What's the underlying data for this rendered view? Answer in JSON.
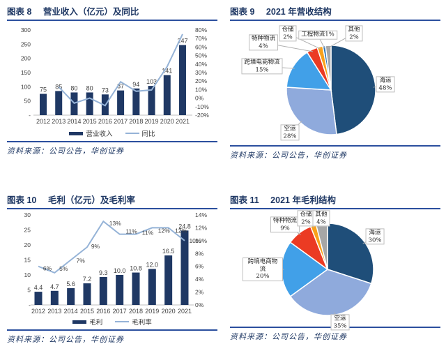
{
  "colors": {
    "navy": "#1F3864",
    "rule": "#2B4F9E",
    "bar": "#1F3864",
    "line": "#95B3D7",
    "axis_text": "#404040",
    "baseline": "#BFBFBF",
    "leader": "#B0B0B0"
  },
  "chart_data": [
    {
      "figure_label": "图表 8",
      "title": "营业收入（亿元）及同比",
      "type": "bar+line",
      "categories": [
        "2012",
        "2013",
        "2014",
        "2015",
        "2016",
        "2017",
        "2018",
        "2019",
        "2020",
        "2021"
      ],
      "series": [
        {
          "name": "营业收入",
          "type": "bar",
          "axis": "left",
          "values": [
            75,
            85,
            80,
            80,
            73,
            87,
            94,
            103,
            141,
            247
          ],
          "labels": [
            "75",
            "85",
            "80",
            "80",
            "73",
            "87",
            "94",
            "103",
            "141",
            "247"
          ],
          "color": "#1F3864"
        },
        {
          "name": "同比",
          "type": "line",
          "axis": "right",
          "values": [
            null,
            13.3,
            -5.9,
            0,
            -8.8,
            19.2,
            8,
            9.6,
            36.9,
            75.2
          ],
          "labels": null,
          "color": "#95B3D7"
        }
      ],
      "left_axis": {
        "min": 0,
        "max": 300,
        "step": 50,
        "zero_label": "-"
      },
      "right_axis": {
        "min": -20,
        "max": 80,
        "step": 10,
        "suffix": "%"
      },
      "legend_position": "bottom",
      "grid": false,
      "source": "资料来源：公司公告，华创证券"
    },
    {
      "figure_label": "图表 9",
      "title": "2021 年营收结构",
      "type": "pie",
      "slices": [
        {
          "name": "海运",
          "value": 48,
          "label": "48%",
          "color": "#1F4E79"
        },
        {
          "name": "空运",
          "value": 28,
          "label": "28%",
          "color": "#8FAADC"
        },
        {
          "name": "跨境电商物流",
          "value": 15,
          "label": "15%",
          "color": "#41A0E8"
        },
        {
          "name": "特种物流",
          "value": 4,
          "label": "4%",
          "color": "#EB3B23"
        },
        {
          "name": "仓储",
          "value": 2,
          "label": "2%",
          "color": "#F9A11B"
        },
        {
          "name": "工程物流",
          "value": 1,
          "label": "1%",
          "color": "#2E75B6"
        },
        {
          "name": "其他",
          "value": 2,
          "label": "2%",
          "color": "#A6A6A6"
        }
      ],
      "source": "资料来源：公司公告，华创证券"
    },
    {
      "figure_label": "图表 10",
      "title": "毛利（亿元）及毛利率",
      "type": "bar+line",
      "categories": [
        "2012",
        "2013",
        "2014",
        "2015",
        "2016",
        "2017",
        "2018",
        "2019",
        "2020",
        "2021"
      ],
      "series": [
        {
          "name": "毛利",
          "type": "bar",
          "axis": "left",
          "values": [
            4.4,
            4.7,
            5.6,
            7.2,
            9.3,
            10.0,
            10.8,
            12.0,
            16.5,
            24.8
          ],
          "labels": [
            "4.4",
            "4.7",
            "5.6",
            "7.2",
            "9.3",
            "10.0",
            "10.8",
            "12.0",
            "16.5",
            "24.8"
          ],
          "color": "#1F3864"
        },
        {
          "name": "毛利率",
          "type": "line",
          "axis": "right",
          "values": [
            6,
            5,
            7,
            9,
            13,
            11,
            11,
            12,
            12,
            10
          ],
          "labels": [
            "6%",
            "5%",
            "7%",
            "9%",
            "13%",
            "11%",
            "11%",
            "12%",
            "12%",
            "10%"
          ],
          "color": "#95B3D7"
        }
      ],
      "left_axis": {
        "min": 0,
        "max": 30,
        "step": 5,
        "zero_label": "-"
      },
      "right_axis": {
        "min": 0,
        "max": 14,
        "step": 2,
        "suffix": "%"
      },
      "legend_position": "bottom",
      "grid": false,
      "source": "资料来源：公司公告，华创证券"
    },
    {
      "figure_label": "图表 11",
      "title": "2021 年毛利结构",
      "type": "pie",
      "slices": [
        {
          "name": "海运",
          "value": 30,
          "label": "30%",
          "color": "#1F4E79"
        },
        {
          "name": "空运",
          "value": 35,
          "label": "35%",
          "color": "#8FAADC"
        },
        {
          "name": "跨境电商物流",
          "value": 20,
          "label": "20%",
          "color": "#41A0E8"
        },
        {
          "name": "特种物流",
          "value": 9,
          "label": "9%",
          "color": "#EB3B23"
        },
        {
          "name": "仓储",
          "value": 2,
          "label": "2%",
          "color": "#F9A11B"
        },
        {
          "name": "其他",
          "value": 4,
          "label": "4%",
          "color": "#A6A6A6"
        }
      ],
      "source": "资料来源：公司公告，华创证券"
    }
  ]
}
